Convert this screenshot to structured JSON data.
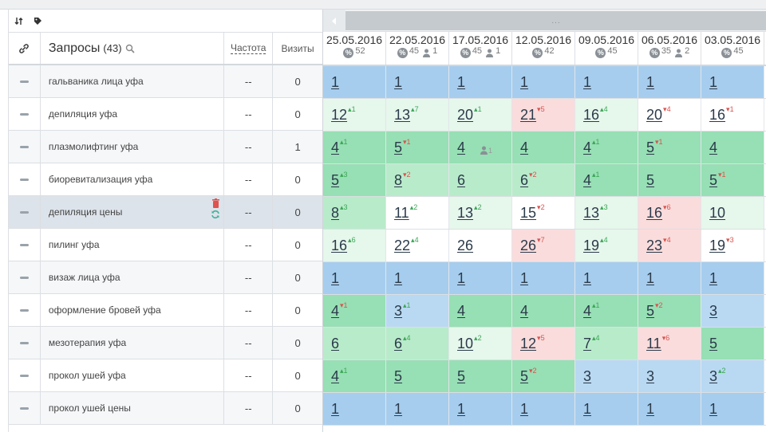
{
  "toolbar": {
    "sort_icon": "sort-icon",
    "tag_icon": "tag-icon"
  },
  "header": {
    "query_title": "Запросы",
    "query_count": "(43)",
    "freq_label": "Частота",
    "visits_label": "Визиты",
    "scroll_dots": "..."
  },
  "dates": [
    {
      "date": "25.05.2016",
      "pct": "52",
      "users": ""
    },
    {
      "date": "22.05.2016",
      "pct": "45",
      "users": "1"
    },
    {
      "date": "17.05.2016",
      "pct": "45",
      "users": "1"
    },
    {
      "date": "12.05.2016",
      "pct": "42",
      "users": ""
    },
    {
      "date": "09.05.2016",
      "pct": "45",
      "users": ""
    },
    {
      "date": "06.05.2016",
      "pct": "35",
      "users": "2"
    },
    {
      "date": "03.05.2016",
      "pct": "45",
      "users": ""
    }
  ],
  "rows": [
    {
      "query": "гальваника лица уфа",
      "freq": "--",
      "visits": "0",
      "cells": [
        {
          "v": "1",
          "d": "",
          "c": "blue"
        },
        {
          "v": "1",
          "d": "",
          "c": "blue"
        },
        {
          "v": "1",
          "d": "",
          "c": "blue"
        },
        {
          "v": "1",
          "d": "",
          "c": "blue"
        },
        {
          "v": "1",
          "d": "",
          "c": "blue"
        },
        {
          "v": "1",
          "d": "",
          "c": "blue"
        },
        {
          "v": "1",
          "d": "",
          "c": "blue"
        }
      ]
    },
    {
      "query": "депиляция уфа",
      "freq": "--",
      "visits": "0",
      "cells": [
        {
          "v": "12",
          "d": "1",
          "dir": "up",
          "c": "vlgreen"
        },
        {
          "v": "13",
          "d": "7",
          "dir": "up",
          "c": "vlgreen"
        },
        {
          "v": "20",
          "d": "1",
          "dir": "up",
          "c": "vlgreen"
        },
        {
          "v": "21",
          "d": "5",
          "dir": "down",
          "c": "pink"
        },
        {
          "v": "16",
          "d": "4",
          "dir": "up",
          "c": "vlgreen"
        },
        {
          "v": "20",
          "d": "4",
          "dir": "down",
          "c": "white"
        },
        {
          "v": "16",
          "d": "1",
          "dir": "down",
          "c": "white"
        }
      ]
    },
    {
      "query": "плазмолифтинг уфа",
      "freq": "--",
      "visits": "1",
      "cells": [
        {
          "v": "4",
          "d": "1",
          "dir": "up",
          "c": "green"
        },
        {
          "v": "5",
          "d": "1",
          "dir": "down",
          "c": "green"
        },
        {
          "v": "4",
          "d": "",
          "c": "green",
          "user": "1"
        },
        {
          "v": "4",
          "d": "",
          "c": "green"
        },
        {
          "v": "4",
          "d": "1",
          "dir": "up",
          "c": "green"
        },
        {
          "v": "5",
          "d": "1",
          "dir": "down",
          "c": "green"
        },
        {
          "v": "4",
          "d": "",
          "c": "green"
        }
      ]
    },
    {
      "query": "биоревитализация уфа",
      "freq": "--",
      "visits": "0",
      "cells": [
        {
          "v": "5",
          "d": "3",
          "dir": "up",
          "c": "green"
        },
        {
          "v": "8",
          "d": "2",
          "dir": "down",
          "c": "lgreen"
        },
        {
          "v": "6",
          "d": "",
          "c": "lgreen"
        },
        {
          "v": "6",
          "d": "2",
          "dir": "down",
          "c": "lgreen"
        },
        {
          "v": "4",
          "d": "1",
          "dir": "up",
          "c": "green"
        },
        {
          "v": "5",
          "d": "",
          "c": "green"
        },
        {
          "v": "5",
          "d": "1",
          "dir": "down",
          "c": "green"
        }
      ]
    },
    {
      "query": "депиляция цены",
      "freq": "--",
      "visits": "0",
      "cells": [
        {
          "v": "8",
          "d": "3",
          "dir": "up",
          "c": "lgreen"
        },
        {
          "v": "11",
          "d": "2",
          "dir": "up",
          "c": "white"
        },
        {
          "v": "13",
          "d": "2",
          "dir": "up",
          "c": "vlgreen"
        },
        {
          "v": "15",
          "d": "2",
          "dir": "down",
          "c": "white"
        },
        {
          "v": "13",
          "d": "3",
          "dir": "up",
          "c": "vlgreen"
        },
        {
          "v": "16",
          "d": "6",
          "dir": "down",
          "c": "pink"
        },
        {
          "v": "10",
          "d": "",
          "c": "vlgreen"
        }
      ]
    },
    {
      "query": "пилинг уфа",
      "freq": "--",
      "visits": "0",
      "cells": [
        {
          "v": "16",
          "d": "6",
          "dir": "up",
          "c": "vlgreen"
        },
        {
          "v": "22",
          "d": "4",
          "dir": "up",
          "c": "white"
        },
        {
          "v": "26",
          "d": "",
          "c": "white"
        },
        {
          "v": "26",
          "d": "7",
          "dir": "down",
          "c": "pink"
        },
        {
          "v": "19",
          "d": "4",
          "dir": "up",
          "c": "vlgreen"
        },
        {
          "v": "23",
          "d": "4",
          "dir": "down",
          "c": "pink"
        },
        {
          "v": "19",
          "d": "3",
          "dir": "down",
          "c": "white"
        }
      ]
    },
    {
      "query": "визаж лица уфа",
      "freq": "--",
      "visits": "0",
      "cells": [
        {
          "v": "1",
          "d": "",
          "c": "blue"
        },
        {
          "v": "1",
          "d": "",
          "c": "blue"
        },
        {
          "v": "1",
          "d": "",
          "c": "blue"
        },
        {
          "v": "1",
          "d": "",
          "c": "blue"
        },
        {
          "v": "1",
          "d": "",
          "c": "blue"
        },
        {
          "v": "1",
          "d": "",
          "c": "blue"
        },
        {
          "v": "1",
          "d": "",
          "c": "blue"
        }
      ]
    },
    {
      "query": "оформление бровей уфа",
      "freq": "--",
      "visits": "0",
      "cells": [
        {
          "v": "4",
          "d": "1",
          "dir": "down",
          "c": "green"
        },
        {
          "v": "3",
          "d": "1",
          "dir": "up",
          "c": "lblue"
        },
        {
          "v": "4",
          "d": "",
          "c": "green"
        },
        {
          "v": "4",
          "d": "",
          "c": "green"
        },
        {
          "v": "4",
          "d": "1",
          "dir": "up",
          "c": "green"
        },
        {
          "v": "5",
          "d": "2",
          "dir": "down",
          "c": "green"
        },
        {
          "v": "3",
          "d": "",
          "c": "lblue"
        }
      ]
    },
    {
      "query": "мезотерапия уфа",
      "freq": "--",
      "visits": "0",
      "cells": [
        {
          "v": "6",
          "d": "",
          "c": "lgreen"
        },
        {
          "v": "6",
          "d": "4",
          "dir": "up",
          "c": "lgreen"
        },
        {
          "v": "10",
          "d": "2",
          "dir": "up",
          "c": "vlgreen"
        },
        {
          "v": "12",
          "d": "5",
          "dir": "down",
          "c": "pink"
        },
        {
          "v": "7",
          "d": "4",
          "dir": "up",
          "c": "lgreen"
        },
        {
          "v": "11",
          "d": "6",
          "dir": "down",
          "c": "pink"
        },
        {
          "v": "5",
          "d": "",
          "c": "green"
        }
      ]
    },
    {
      "query": "прокол ушей уфа",
      "freq": "--",
      "visits": "0",
      "cells": [
        {
          "v": "4",
          "d": "1",
          "dir": "up",
          "c": "green"
        },
        {
          "v": "5",
          "d": "",
          "c": "green"
        },
        {
          "v": "5",
          "d": "",
          "c": "green"
        },
        {
          "v": "5",
          "d": "2",
          "dir": "down",
          "c": "green"
        },
        {
          "v": "3",
          "d": "",
          "c": "lblue"
        },
        {
          "v": "3",
          "d": "",
          "c": "lblue"
        },
        {
          "v": "3",
          "d": "2",
          "dir": "up",
          "c": "lblue"
        }
      ]
    },
    {
      "query": "прокол ушей цены",
      "freq": "--",
      "visits": "0",
      "cells": [
        {
          "v": "1",
          "d": "",
          "c": "blue"
        },
        {
          "v": "1",
          "d": "",
          "c": "blue"
        },
        {
          "v": "1",
          "d": "",
          "c": "blue"
        },
        {
          "v": "1",
          "d": "",
          "c": "blue"
        },
        {
          "v": "1",
          "d": "",
          "c": "blue"
        },
        {
          "v": "1",
          "d": "",
          "c": "blue"
        },
        {
          "v": "1",
          "d": "",
          "c": "blue"
        }
      ]
    }
  ],
  "selected_row": 4,
  "colors": {
    "blue": "#a6cdee",
    "green": "#97dfb4",
    "pink": "#fadcdc",
    "up": "#3aa655",
    "down": "#d9534f"
  }
}
